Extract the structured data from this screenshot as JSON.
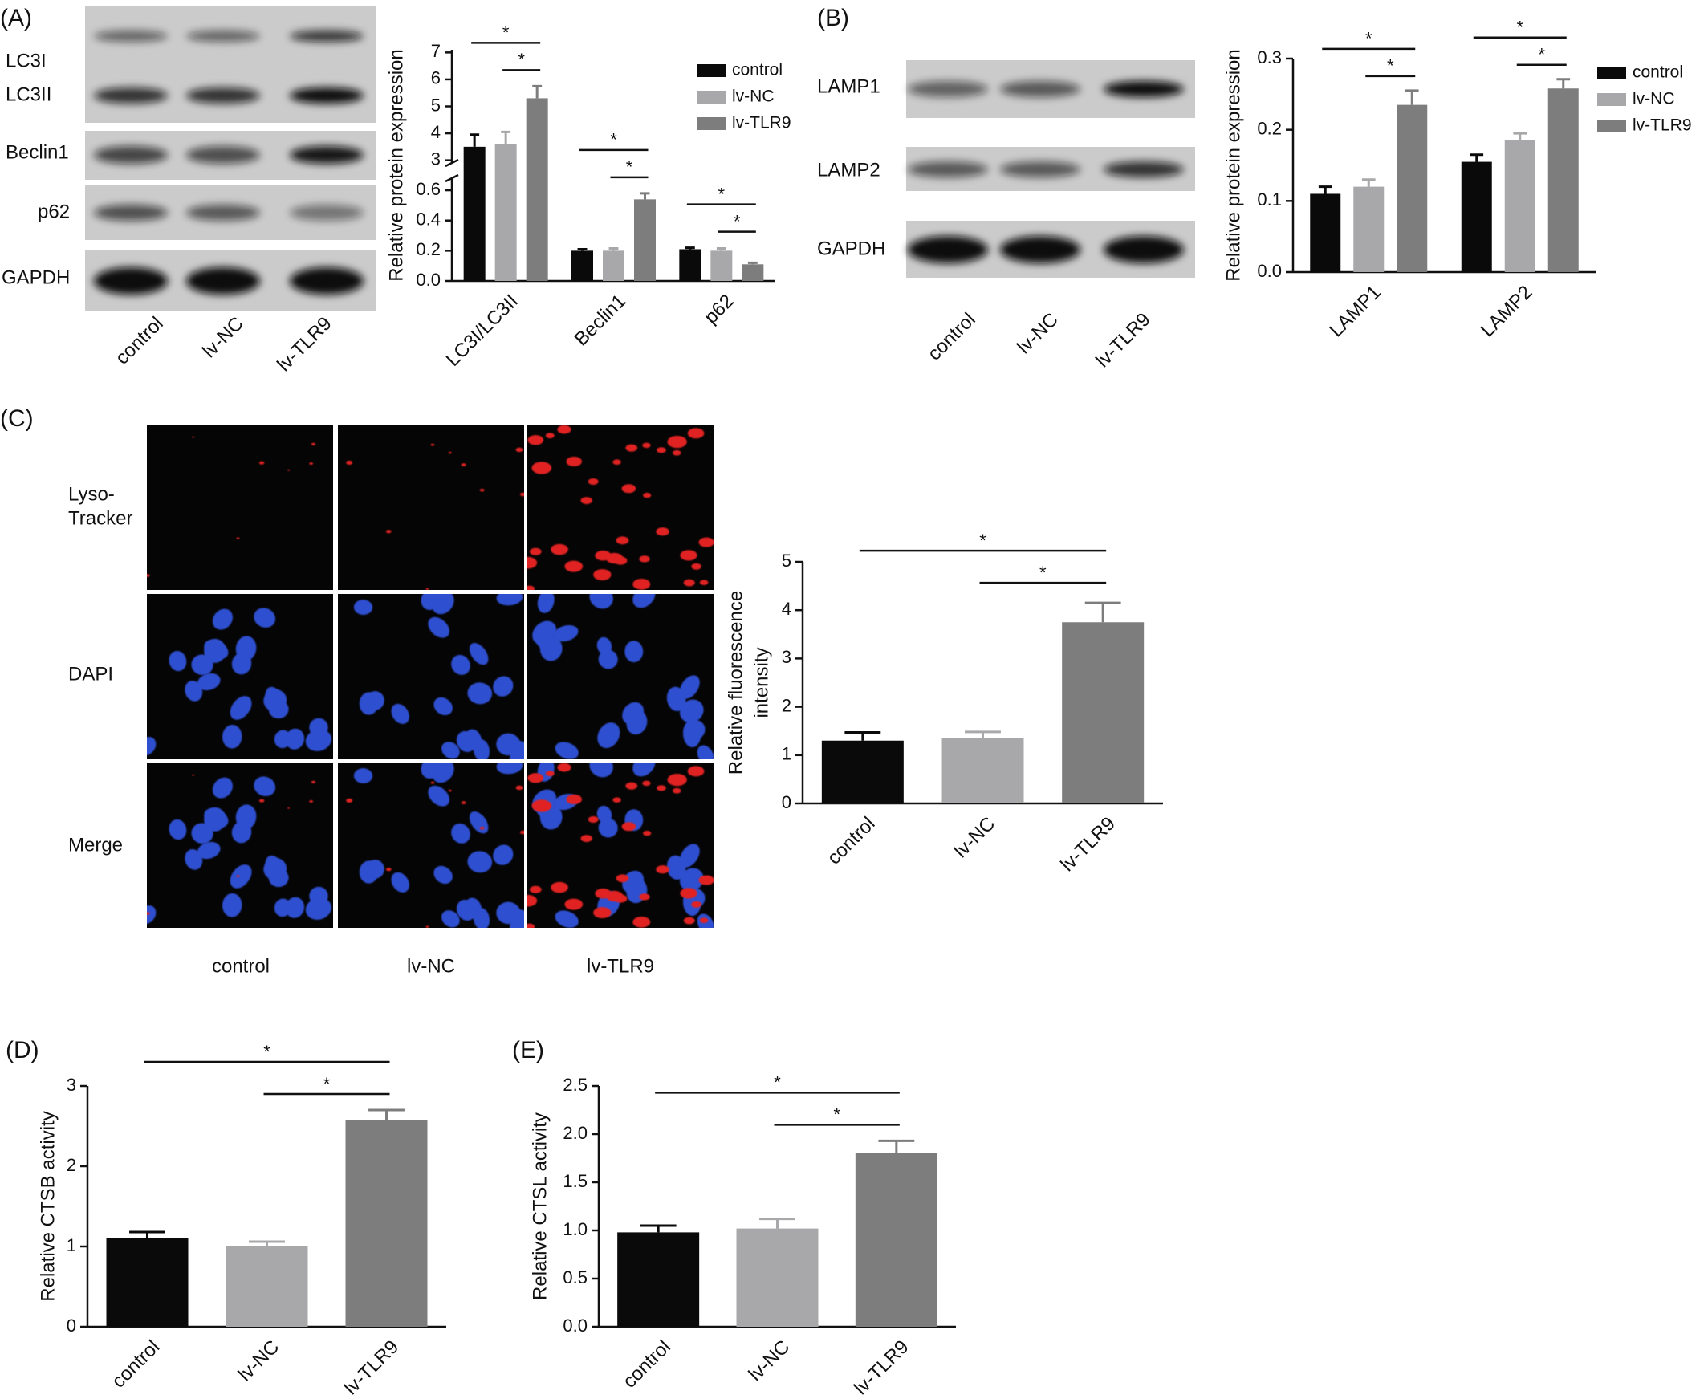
{
  "figure": {
    "panel_labels": [
      "(A)",
      "(B)",
      "(C)",
      "(D)",
      "(E)"
    ],
    "blot_a": {
      "bands": [
        "LC3I",
        "LC3II",
        "Beclin1",
        "p62",
        "GAPDH"
      ],
      "lanes": [
        "control",
        "lv-NC",
        "lv-TLR9"
      ]
    },
    "blot_b": {
      "bands": [
        "LAMP1",
        "LAMP2",
        "GAPDH"
      ],
      "lanes": [
        "control",
        "lv-NC",
        "lv-TLR9"
      ]
    },
    "imaging_c": {
      "rows": [
        [
          "Lyso-",
          "Tracker"
        ],
        [
          "DAPI"
        ],
        [
          "Merge"
        ]
      ],
      "columns": [
        "control",
        "lv-NC",
        "lv-TLR9"
      ]
    }
  },
  "chart_data": [
    {
      "type": "bar",
      "ylabel": "Relative protein expression",
      "categories": [
        "LC3I/LC3II",
        "Beclin1",
        "p62"
      ],
      "series": [
        {
          "name": "control",
          "color": "#0a0a0a",
          "values": [
            3.5,
            0.2,
            0.21
          ],
          "errors": [
            0.45,
            0.01,
            0.01
          ]
        },
        {
          "name": "lv-NC",
          "color": "#a8a8aa",
          "values": [
            3.6,
            0.2,
            0.2
          ],
          "errors": [
            0.45,
            0.015,
            0.015
          ]
        },
        {
          "name": "lv-TLR9",
          "color": "#7d7d7d",
          "values": [
            5.3,
            0.54,
            0.11
          ],
          "errors": [
            0.45,
            0.04,
            0.01
          ]
        }
      ],
      "ylim": [
        0,
        7.1
      ],
      "ybreak": [
        0.68,
        2.9
      ],
      "yticks": [
        {
          "value": 0,
          "label": "0.0"
        },
        0.2,
        0.4,
        0.6,
        3,
        4,
        5,
        6,
        7
      ],
      "significance": [
        [
          "*",
          "*"
        ],
        [
          "*",
          "*"
        ],
        [
          "*",
          "*"
        ]
      ],
      "legend": "top right"
    },
    {
      "type": "bar",
      "ylabel": "Relative protein expression",
      "categories": [
        "LAMP1",
        "LAMP2"
      ],
      "series": [
        {
          "name": "control",
          "color": "#0a0a0a",
          "values": [
            0.11,
            0.155
          ],
          "errors": [
            0.01,
            0.01
          ]
        },
        {
          "name": "lv-NC",
          "color": "#a8a8aa",
          "values": [
            0.12,
            0.185
          ],
          "errors": [
            0.01,
            0.01
          ]
        },
        {
          "name": "lv-TLR9",
          "color": "#7d7d7d",
          "values": [
            0.235,
            0.258
          ],
          "errors": [
            0.02,
            0.013
          ]
        }
      ],
      "ylim": [
        0,
        0.3
      ],
      "yticks": [
        {
          "value": 0,
          "label": "0.0"
        },
        0.1,
        0.2,
        0.3
      ],
      "significance": [
        [
          "*",
          "*"
        ],
        [
          "*",
          "*"
        ]
      ],
      "legend": "top right"
    },
    {
      "type": "bar",
      "ylabel": [
        "Relative fluorescence",
        "intensity"
      ],
      "categories": [
        "control",
        "lv-NC",
        "lv-TLR9"
      ],
      "values": [
        1.3,
        1.35,
        3.75
      ],
      "errors": [
        0.17,
        0.13,
        0.4
      ],
      "colors": [
        "#0a0a0a",
        "#a8a8aa",
        "#7d7d7d"
      ],
      "ylim": [
        0,
        5
      ],
      "yticks": [
        0,
        1,
        2,
        3,
        4,
        5
      ],
      "significance": [
        "*",
        "*"
      ]
    },
    {
      "type": "bar",
      "ylabel": "Relative CTSB activity",
      "categories": [
        "control",
        "lv-NC",
        "lv-TLR9"
      ],
      "values": [
        1.1,
        1.0,
        2.57
      ],
      "errors": [
        0.08,
        0.06,
        0.13
      ],
      "colors": [
        "#0a0a0a",
        "#a8a8aa",
        "#7d7d7d"
      ],
      "ylim": [
        0,
        3
      ],
      "yticks": [
        0,
        1,
        2,
        3
      ],
      "significance": [
        "*",
        "*"
      ]
    },
    {
      "type": "bar",
      "ylabel": "Relative CTSL activity",
      "categories": [
        "control",
        "lv-NC",
        "lv-TLR9"
      ],
      "values": [
        0.98,
        1.02,
        1.8
      ],
      "errors": [
        0.07,
        0.1,
        0.13
      ],
      "colors": [
        "#0a0a0a",
        "#a8a8aa",
        "#7d7d7d"
      ],
      "ylim": [
        0,
        2.5
      ],
      "yticks": [
        {
          "value": 0,
          "label": "0.0"
        },
        0.5,
        {
          "value": 1,
          "label": "1.0"
        },
        1.5,
        {
          "value": 2,
          "label": "2.0"
        },
        2.5
      ],
      "significance": [
        "*",
        "*"
      ]
    }
  ]
}
